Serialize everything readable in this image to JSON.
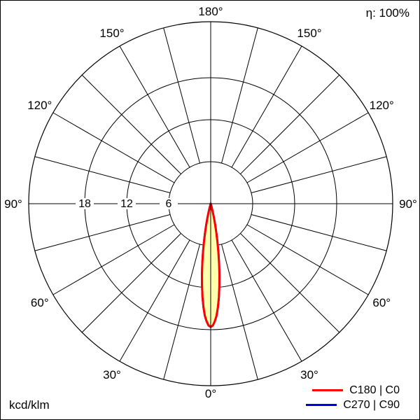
{
  "header": {
    "efficiency_label": "η: 100%"
  },
  "footer": {
    "unit_label": "kcd/klm"
  },
  "legend": [
    {
      "label": "C180 | C0",
      "color": "#ff0000"
    },
    {
      "label": "C270 | C90",
      "color": "#0000dd"
    }
  ],
  "chart_data": {
    "type": "line",
    "coordinate_system": "polar",
    "description": "Luminous intensity distribution curve of a narrow-beam luminaire",
    "unit": "kcd/klm",
    "efficiency": "η: 100%",
    "angle_axis": {
      "zero_direction": "down",
      "symmetric_labels": true,
      "label_step_deg": 30,
      "grid_step_deg": 15,
      "labels": [
        "0°",
        "30°",
        "60°",
        "90°",
        "120°",
        "150°",
        "180°"
      ]
    },
    "radial_axis": {
      "ticks": [
        6,
        12,
        18
      ],
      "tick_labels": [
        "6",
        "12",
        "18"
      ],
      "range": [
        0,
        26
      ]
    },
    "grid": {
      "color": "#000000",
      "visible": true
    },
    "series": [
      {
        "name": "C180 | C0",
        "color": "#ff0000",
        "fill": "#ffffb0",
        "points": [
          [
            -16,
            0.2
          ],
          [
            -15,
            0.6
          ],
          [
            -14,
            1.2
          ],
          [
            -13,
            2.0
          ],
          [
            -12,
            3.0
          ],
          [
            -11,
            4.2
          ],
          [
            -10,
            5.5
          ],
          [
            -9,
            7.0
          ],
          [
            -8,
            8.6
          ],
          [
            -7,
            10.2
          ],
          [
            -6,
            11.8
          ],
          [
            -5,
            13.4
          ],
          [
            -4,
            14.8
          ],
          [
            -3,
            16.0
          ],
          [
            -2,
            16.8
          ],
          [
            -1,
            17.4
          ],
          [
            0,
            17.6
          ],
          [
            1,
            17.4
          ],
          [
            2,
            16.8
          ],
          [
            3,
            16.0
          ],
          [
            4,
            14.8
          ],
          [
            5,
            13.4
          ],
          [
            6,
            11.8
          ],
          [
            7,
            10.2
          ],
          [
            8,
            8.6
          ],
          [
            9,
            7.0
          ],
          [
            10,
            5.5
          ],
          [
            11,
            4.2
          ],
          [
            12,
            3.0
          ],
          [
            13,
            2.0
          ],
          [
            14,
            1.2
          ],
          [
            15,
            0.6
          ],
          [
            16,
            0.2
          ]
        ]
      },
      {
        "name": "C270 | C90",
        "color": "#0000dd",
        "fill": "#ffffb0",
        "points": [
          [
            -16,
            0.2
          ],
          [
            -15,
            0.6
          ],
          [
            -14,
            1.2
          ],
          [
            -13,
            2.0
          ],
          [
            -12,
            3.0
          ],
          [
            -11,
            4.2
          ],
          [
            -10,
            5.5
          ],
          [
            -9,
            7.0
          ],
          [
            -8,
            8.6
          ],
          [
            -7,
            10.2
          ],
          [
            -6,
            11.8
          ],
          [
            -5,
            13.4
          ],
          [
            -4,
            14.8
          ],
          [
            -3,
            16.0
          ],
          [
            -2,
            16.8
          ],
          [
            -1,
            17.4
          ],
          [
            0,
            17.6
          ],
          [
            1,
            17.4
          ],
          [
            2,
            16.8
          ],
          [
            3,
            16.0
          ],
          [
            4,
            14.8
          ],
          [
            5,
            13.4
          ],
          [
            6,
            11.8
          ],
          [
            7,
            10.2
          ],
          [
            8,
            8.6
          ],
          [
            9,
            7.0
          ],
          [
            10,
            5.5
          ],
          [
            11,
            4.2
          ],
          [
            12,
            3.0
          ],
          [
            13,
            2.0
          ],
          [
            14,
            1.2
          ],
          [
            15,
            0.6
          ],
          [
            16,
            0.2
          ]
        ]
      }
    ]
  }
}
